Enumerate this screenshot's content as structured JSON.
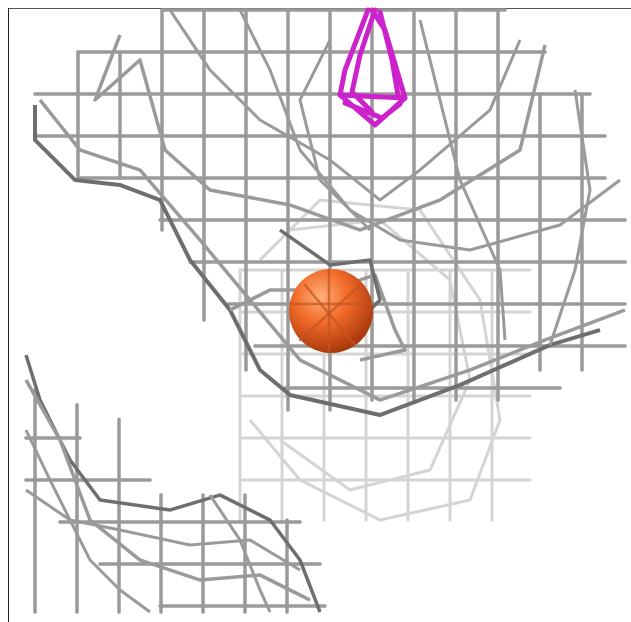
{
  "scene": {
    "background": "#ffffff",
    "mesh_color": "#9a9a9a",
    "mesh_dark": "#6e6e6e",
    "mesh_faded": "#d4d4d4",
    "ligand_color": "#cc22cc",
    "atom_color": "#f26b2a",
    "atom_highlight": "#ffb07a",
    "atom_shadow": "#b8400f"
  },
  "objects": {
    "atom": "sphere-atom",
    "ligand": "stick-fragment",
    "density": "electron-density-mesh"
  }
}
